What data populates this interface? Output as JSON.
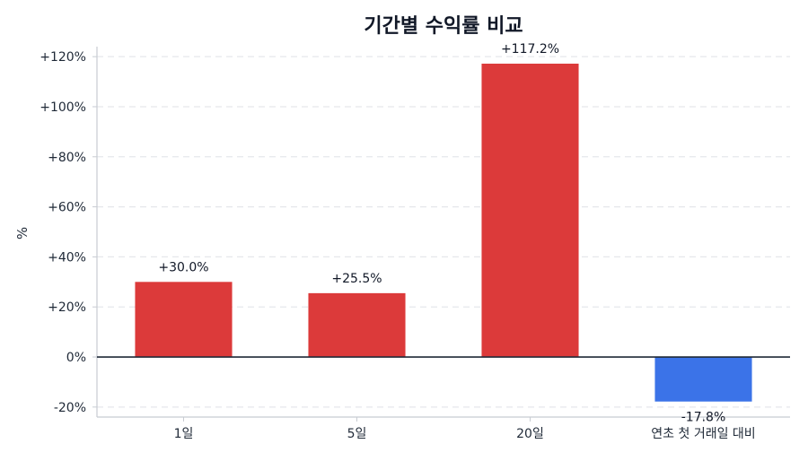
{
  "chart_data": {
    "type": "bar",
    "title": "기간별 수익률 비교",
    "xlabel": "",
    "ylabel": "%",
    "categories": [
      "1일",
      "5일",
      "20일",
      "연초 첫 거래일 대비"
    ],
    "values": [
      30.0,
      25.5,
      117.2,
      -17.8
    ],
    "value_labels": [
      "+30.0%",
      "+25.5%",
      "+117.2%",
      "-17.8%"
    ],
    "ylim": [
      -24,
      124
    ],
    "yticks": [
      -20,
      0,
      20,
      40,
      60,
      80,
      100,
      120
    ],
    "ytick_labels": [
      "-20%",
      "0%",
      "+20%",
      "+40%",
      "+60%",
      "+80%",
      "+100%",
      "+120%"
    ],
    "grid": true,
    "colors": {
      "positive": "#dc3a3a",
      "negative": "#3b73e8",
      "zero_line": "#1f2937",
      "grid": "#e5e7eb",
      "axis": "#c8ccd2"
    }
  }
}
